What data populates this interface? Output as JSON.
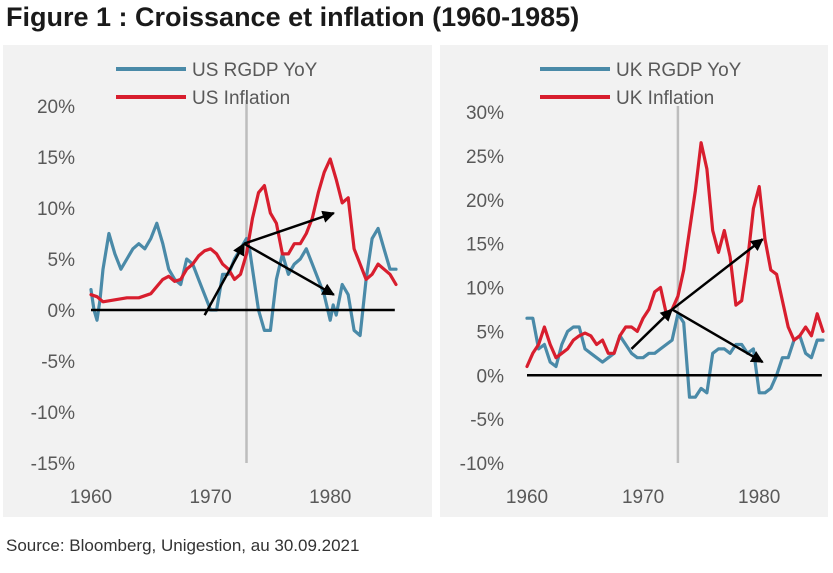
{
  "title": "Figure 1 : Croissance et inflation (1960-1985)",
  "source": "Source: Bloomberg, Unigestion, au 30.09.2021",
  "colors": {
    "growth": "#4a8aa8",
    "inflation": "#d81e2e",
    "annotation": "#000000",
    "marker": "#bdbdbd",
    "panel_bg": "#f2f2f2"
  },
  "chart_data": [
    {
      "type": "line",
      "legend_position": "top-center",
      "grid": false,
      "xlim": [
        1960,
        1985.5
      ],
      "ylim": [
        -15,
        20
      ],
      "x_ticks": [
        1960,
        1970,
        1980
      ],
      "x_tick_labels": [
        "1960",
        "1970",
        "1980"
      ],
      "y_ticks": [
        -15,
        -10,
        -5,
        0,
        5,
        10,
        15,
        20
      ],
      "y_tick_labels": [
        "-15%",
        "-10%",
        "-5%",
        "0%",
        "5%",
        "10%",
        "15%",
        "20%"
      ],
      "vertical_marker_x": 1973,
      "series": [
        {
          "name": "US RGDP YoY",
          "key": "growth",
          "x": [
            1960,
            1960.25,
            1960.5,
            1960.75,
            1961,
            1961.5,
            1962,
            1962.5,
            1963,
            1963.5,
            1964,
            1964.5,
            1965,
            1965.5,
            1966,
            1966.5,
            1967,
            1967.5,
            1968,
            1968.5,
            1969,
            1969.5,
            1970,
            1970.5,
            1971,
            1971.5,
            1972,
            1972.5,
            1973,
            1973.25,
            1973.5,
            1974,
            1974.5,
            1975,
            1975.5,
            1976,
            1976.5,
            1977,
            1977.5,
            1978,
            1978.5,
            1979,
            1979.5,
            1980,
            1980.25,
            1980.5,
            1981,
            1981.5,
            1982,
            1982.5,
            1983,
            1983.5,
            1984,
            1984.5,
            1985,
            1985.5
          ],
          "y": [
            2.0,
            0.0,
            -1.0,
            1.0,
            4.0,
            7.5,
            5.5,
            4.0,
            5.0,
            6.0,
            6.5,
            6.0,
            7.0,
            8.5,
            6.5,
            4.0,
            3.0,
            2.5,
            5.0,
            4.5,
            3.0,
            1.5,
            0.0,
            0.0,
            3.5,
            3.5,
            5.0,
            6.0,
            7.0,
            6.0,
            4.0,
            0.0,
            -2.0,
            -2.0,
            3.0,
            5.5,
            3.5,
            4.5,
            5.0,
            6.0,
            4.5,
            3.0,
            1.5,
            -1.0,
            0.5,
            -0.5,
            2.5,
            1.5,
            -2.0,
            -2.5,
            3.0,
            7.0,
            8.0,
            6.0,
            4.0,
            4.0
          ]
        },
        {
          "name": "US Inflation",
          "key": "inflation",
          "x": [
            1960,
            1960.5,
            1961,
            1962,
            1963,
            1964,
            1965,
            1966,
            1966.5,
            1967,
            1967.5,
            1968,
            1968.5,
            1969,
            1969.5,
            1970,
            1970.5,
            1971,
            1971.5,
            1972,
            1972.5,
            1973,
            1973.5,
            1974,
            1974.5,
            1975,
            1975.5,
            1976,
            1976.5,
            1977,
            1977.5,
            1978,
            1978.5,
            1979,
            1979.5,
            1980,
            1980.5,
            1981,
            1981.5,
            1982,
            1982.5,
            1983,
            1983.5,
            1984,
            1984.5,
            1985,
            1985.5
          ],
          "y": [
            1.5,
            1.3,
            0.8,
            1.0,
            1.2,
            1.2,
            1.6,
            3.0,
            3.3,
            2.8,
            3.0,
            4.0,
            4.5,
            5.3,
            5.8,
            6.0,
            5.5,
            4.5,
            4.0,
            3.0,
            3.5,
            5.5,
            9.0,
            11.5,
            12.2,
            9.5,
            8.5,
            5.5,
            5.5,
            6.5,
            6.5,
            7.5,
            9.0,
            11.5,
            13.5,
            14.8,
            12.8,
            10.5,
            11.0,
            6.0,
            4.5,
            3.0,
            3.5,
            4.5,
            4.0,
            3.5,
            2.5
          ]
        }
      ],
      "annotations": [
        {
          "from": [
            1969.5,
            -0.5
          ],
          "to": [
            1972.8,
            6.5
          ]
        },
        {
          "from": [
            1972.8,
            6.5
          ],
          "to": [
            1980.3,
            9.5
          ]
        },
        {
          "from": [
            1972.8,
            6.5
          ],
          "to": [
            1980.3,
            1.5
          ]
        },
        {
          "from": [
            1960,
            0
          ],
          "to": [
            1985.4,
            0
          ]
        }
      ]
    },
    {
      "type": "line",
      "legend_position": "top-center",
      "grid": false,
      "xlim": [
        1960,
        1985.5
      ],
      "ylim": [
        -10,
        30
      ],
      "x_ticks": [
        1960,
        1970,
        1980
      ],
      "x_tick_labels": [
        "1960",
        "1970",
        "1980"
      ],
      "y_ticks": [
        -10,
        -5,
        0,
        5,
        10,
        15,
        20,
        25,
        30
      ],
      "y_tick_labels": [
        "-10%",
        "-5%",
        "0%",
        "5%",
        "10%",
        "15%",
        "20%",
        "25%",
        "30%"
      ],
      "vertical_marker_x": 1973,
      "series": [
        {
          "name": "UK RGDP YoY",
          "key": "growth",
          "x": [
            1960,
            1960.5,
            1961,
            1961.5,
            1962,
            1962.5,
            1963,
            1963.5,
            1964,
            1964.5,
            1965,
            1965.5,
            1966,
            1966.5,
            1967,
            1967.5,
            1968,
            1968.5,
            1969,
            1969.5,
            1970,
            1970.5,
            1971,
            1971.5,
            1972,
            1972.5,
            1973,
            1973.5,
            1974,
            1974.5,
            1975,
            1975.5,
            1976,
            1976.5,
            1977,
            1977.5,
            1978,
            1978.5,
            1979,
            1979.5,
            1980,
            1980.5,
            1981,
            1981.5,
            1982,
            1982.5,
            1983,
            1983.5,
            1984,
            1984.5,
            1985,
            1985.5
          ],
          "y": [
            6.5,
            6.5,
            3.0,
            3.5,
            1.5,
            1.0,
            3.5,
            5.0,
            5.5,
            5.5,
            3.0,
            2.5,
            2.0,
            1.5,
            2.0,
            2.5,
            4.5,
            3.5,
            2.5,
            2.0,
            2.0,
            2.5,
            2.5,
            3.0,
            3.5,
            4.0,
            7.0,
            6.0,
            -2.5,
            -2.5,
            -1.5,
            -2.0,
            2.5,
            3.0,
            3.0,
            2.5,
            3.5,
            3.5,
            2.5,
            3.0,
            -2.0,
            -2.0,
            -1.5,
            0.0,
            2.0,
            2.0,
            4.0,
            4.5,
            2.5,
            2.0,
            4.0,
            4.0
          ]
        },
        {
          "name": "UK Inflation",
          "key": "inflation",
          "x": [
            1960,
            1960.5,
            1961,
            1961.5,
            1962,
            1962.5,
            1963,
            1963.5,
            1964,
            1964.5,
            1965,
            1965.5,
            1966,
            1966.5,
            1967,
            1967.5,
            1968,
            1968.5,
            1969,
            1969.5,
            1970,
            1970.5,
            1971,
            1971.5,
            1972,
            1972.5,
            1973,
            1973.5,
            1974,
            1974.5,
            1975,
            1975.5,
            1976,
            1976.5,
            1977,
            1977.5,
            1978,
            1978.5,
            1979,
            1979.5,
            1980,
            1980.5,
            1981,
            1981.5,
            1982,
            1982.5,
            1983,
            1983.5,
            1984,
            1984.5,
            1985,
            1985.5
          ],
          "y": [
            1.0,
            2.5,
            3.5,
            5.5,
            3.5,
            2.0,
            2.5,
            3.0,
            4.0,
            4.5,
            4.8,
            4.5,
            3.5,
            4.0,
            2.5,
            2.5,
            4.5,
            5.5,
            5.5,
            5.0,
            6.5,
            7.5,
            9.5,
            10.0,
            7.0,
            7.5,
            9.0,
            12.0,
            16.5,
            21.0,
            26.5,
            23.5,
            16.5,
            14.0,
            16.5,
            13.5,
            8.0,
            8.5,
            13.0,
            19.0,
            21.5,
            15.5,
            12.0,
            11.5,
            8.5,
            5.5,
            4.0,
            4.5,
            5.5,
            4.5,
            7.0,
            5.0
          ]
        }
      ],
      "annotations": [
        {
          "from": [
            1969,
            3.0
          ],
          "to": [
            1972.5,
            7.5
          ]
        },
        {
          "from": [
            1972.5,
            7.5
          ],
          "to": [
            1980.3,
            15.5
          ]
        },
        {
          "from": [
            1972.5,
            7.5
          ],
          "to": [
            1980.3,
            1.5
          ]
        },
        {
          "from": [
            1960,
            0
          ],
          "to": [
            1985.4,
            0
          ]
        }
      ]
    }
  ]
}
